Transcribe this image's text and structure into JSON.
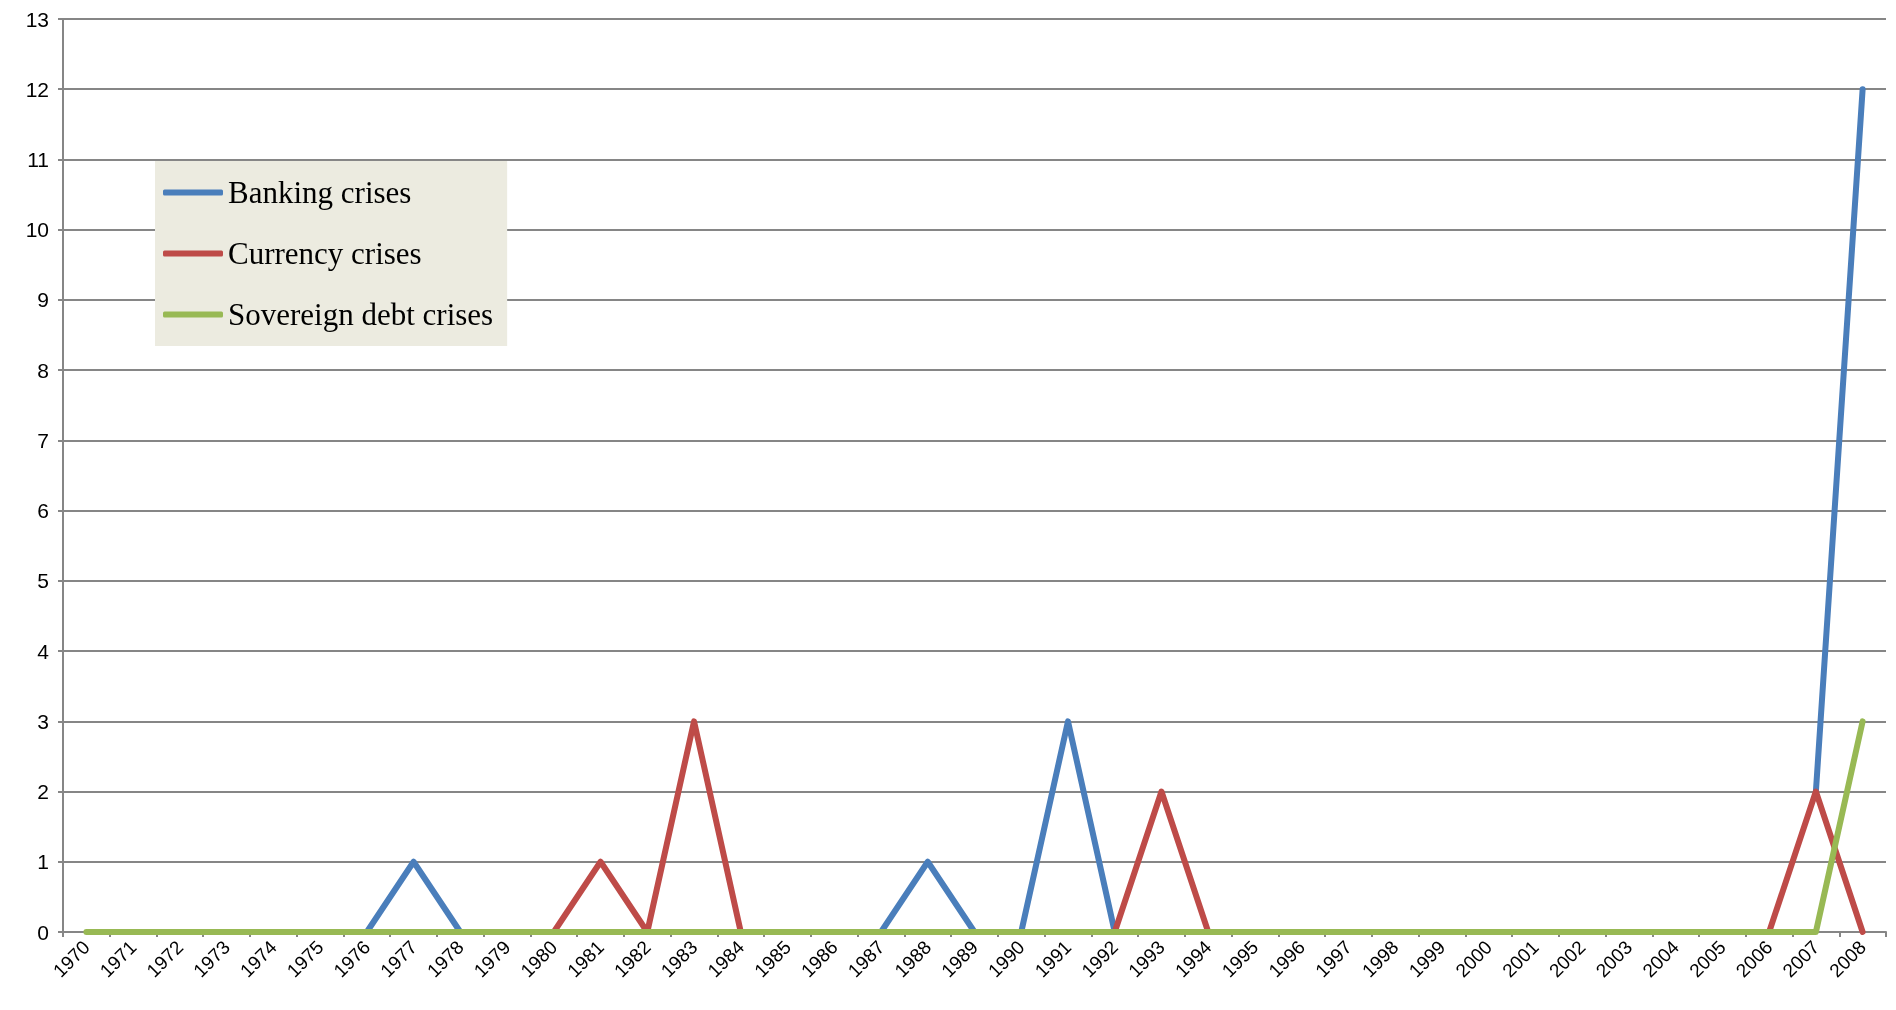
{
  "chart_data": {
    "type": "line",
    "categories": [
      "1970",
      "1971",
      "1972",
      "1973",
      "1974",
      "1975",
      "1976",
      "1977",
      "1978",
      "1979",
      "1980",
      "1981",
      "1982",
      "1983",
      "1984",
      "1985",
      "1986",
      "1987",
      "1988",
      "1989",
      "1990",
      "1991",
      "1992",
      "1993",
      "1994",
      "1995",
      "1996",
      "1997",
      "1998",
      "1999",
      "2000",
      "2001",
      "2002",
      "2003",
      "2004",
      "2005",
      "2006",
      "2007",
      "2008"
    ],
    "series": [
      {
        "name": "Banking crises",
        "color": "#4a7ebb",
        "values": [
          null,
          null,
          null,
          null,
          null,
          null,
          0,
          1,
          0,
          null,
          null,
          null,
          null,
          null,
          null,
          null,
          null,
          0,
          1,
          0,
          0,
          3,
          0,
          null,
          null,
          null,
          null,
          null,
          null,
          null,
          null,
          null,
          null,
          null,
          null,
          null,
          null,
          2,
          12
        ]
      },
      {
        "name": "Currency crises",
        "color": "#be4b48",
        "values": [
          null,
          null,
          null,
          null,
          null,
          null,
          null,
          null,
          null,
          null,
          0,
          1,
          0,
          3,
          0,
          null,
          null,
          null,
          null,
          null,
          null,
          null,
          0,
          2,
          0,
          null,
          null,
          null,
          null,
          null,
          null,
          null,
          null,
          null,
          null,
          null,
          0,
          2,
          0
        ]
      },
      {
        "name": "Sovereign debt crises",
        "color": "#98b954",
        "values": [
          0,
          0,
          0,
          0,
          0,
          0,
          0,
          0,
          0,
          0,
          0,
          0,
          0,
          0,
          0,
          0,
          0,
          0,
          0,
          0,
          0,
          0,
          0,
          0,
          0,
          0,
          0,
          0,
          0,
          0,
          0,
          0,
          0,
          0,
          0,
          0,
          0,
          0,
          3
        ]
      }
    ],
    "ylim": [
      0,
      13
    ],
    "yticks": [
      0,
      1,
      2,
      3,
      4,
      5,
      6,
      7,
      8,
      9,
      10,
      11,
      12,
      13
    ],
    "grid": "y",
    "legend": "top left",
    "marker": "none",
    "line_style": "solid"
  }
}
